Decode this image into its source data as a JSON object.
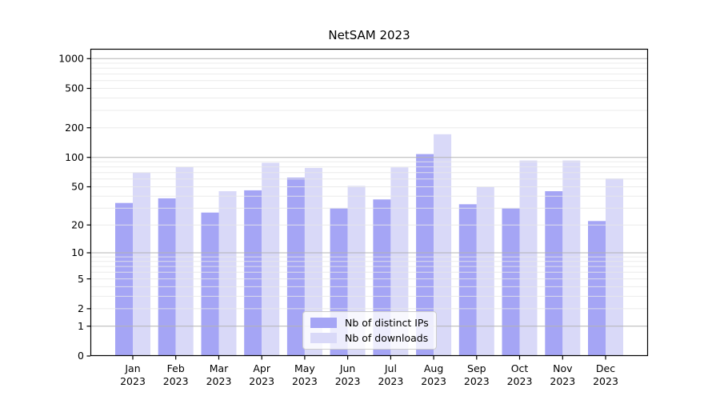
{
  "chart_data": {
    "type": "bar",
    "title": "NetSAM 2023",
    "categories": [
      "Jan",
      "Feb",
      "Mar",
      "Apr",
      "May",
      "Jun",
      "Jul",
      "Aug",
      "Sep",
      "Oct",
      "Nov",
      "Dec"
    ],
    "x_year_label": "2023",
    "series": [
      {
        "name": "Nb of distinct IPs",
        "color": "#a5a5f5",
        "values": [
          34,
          38,
          27,
          46,
          62,
          30,
          37,
          108,
          33,
          30,
          45,
          22
        ]
      },
      {
        "name": "Nb of downloads",
        "color": "#d9d9f8",
        "values": [
          70,
          80,
          45,
          88,
          78,
          51,
          79,
          172,
          50,
          93,
          93,
          61
        ]
      }
    ],
    "y_axis": {
      "scale": "log1p",
      "ticks": [
        1000,
        500,
        200,
        100,
        50,
        20,
        10,
        5,
        2,
        1,
        0
      ],
      "major_gridlines": [
        1,
        10,
        100,
        1000
      ],
      "minor_gridlines": [
        2,
        3,
        4,
        5,
        6,
        7,
        8,
        9,
        20,
        30,
        40,
        50,
        60,
        70,
        80,
        90,
        200,
        300,
        400,
        500,
        600,
        700,
        800,
        900
      ],
      "range": [
        0,
        1258
      ]
    },
    "legend": {
      "position": "lower-center"
    },
    "grid": "on",
    "colors": {
      "axis": "#000000",
      "major_grid": "#b4b4b4",
      "minor_grid": "#e8e8e8",
      "background": "#ffffff"
    }
  }
}
